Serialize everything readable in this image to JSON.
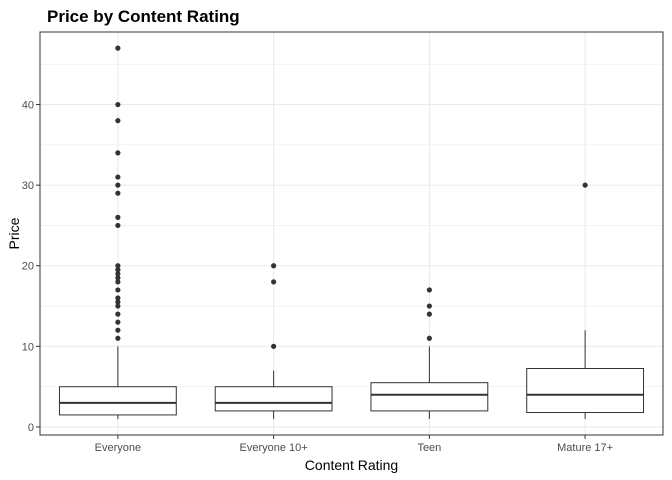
{
  "chart_data": {
    "type": "boxplot",
    "title": "Price by Content Rating",
    "xlabel": "Content Rating",
    "ylabel": "Price",
    "categories": [
      "Everyone",
      "Everyone 10+",
      "Teen",
      "Mature 17+"
    ],
    "ylim": [
      -1,
      49
    ],
    "yticks": [
      0,
      10,
      20,
      30,
      40
    ],
    "grid": true,
    "boxes": [
      {
        "category": "Everyone",
        "whisker_low": 0.99,
        "q1": 1.49,
        "median": 2.99,
        "q3": 4.99,
        "whisker_high": 9.99,
        "outliers": [
          11,
          12,
          13,
          14,
          15,
          15.5,
          16,
          17,
          18,
          18.5,
          19,
          19.5,
          20,
          25,
          26,
          29,
          30,
          31,
          34,
          38,
          40,
          47
        ]
      },
      {
        "category": "Everyone 10+",
        "whisker_low": 0.99,
        "q1": 1.99,
        "median": 2.99,
        "q3": 4.99,
        "whisker_high": 6.99,
        "outliers": [
          10,
          18,
          20
        ]
      },
      {
        "category": "Teen",
        "whisker_low": 0.99,
        "q1": 1.99,
        "median": 3.99,
        "q3": 5.49,
        "whisker_high": 9.99,
        "outliers": [
          11,
          14,
          15,
          17
        ]
      },
      {
        "category": "Mature 17+",
        "whisker_low": 0.99,
        "q1": 1.79,
        "median": 3.99,
        "q3": 7.25,
        "whisker_high": 11.99,
        "outliers": [
          30
        ]
      }
    ],
    "colors": {
      "box_fill": "#ffffff",
      "box_stroke": "#333333",
      "points": "#333333",
      "grid": "#ebebeb",
      "panel_border": "#333333"
    }
  }
}
